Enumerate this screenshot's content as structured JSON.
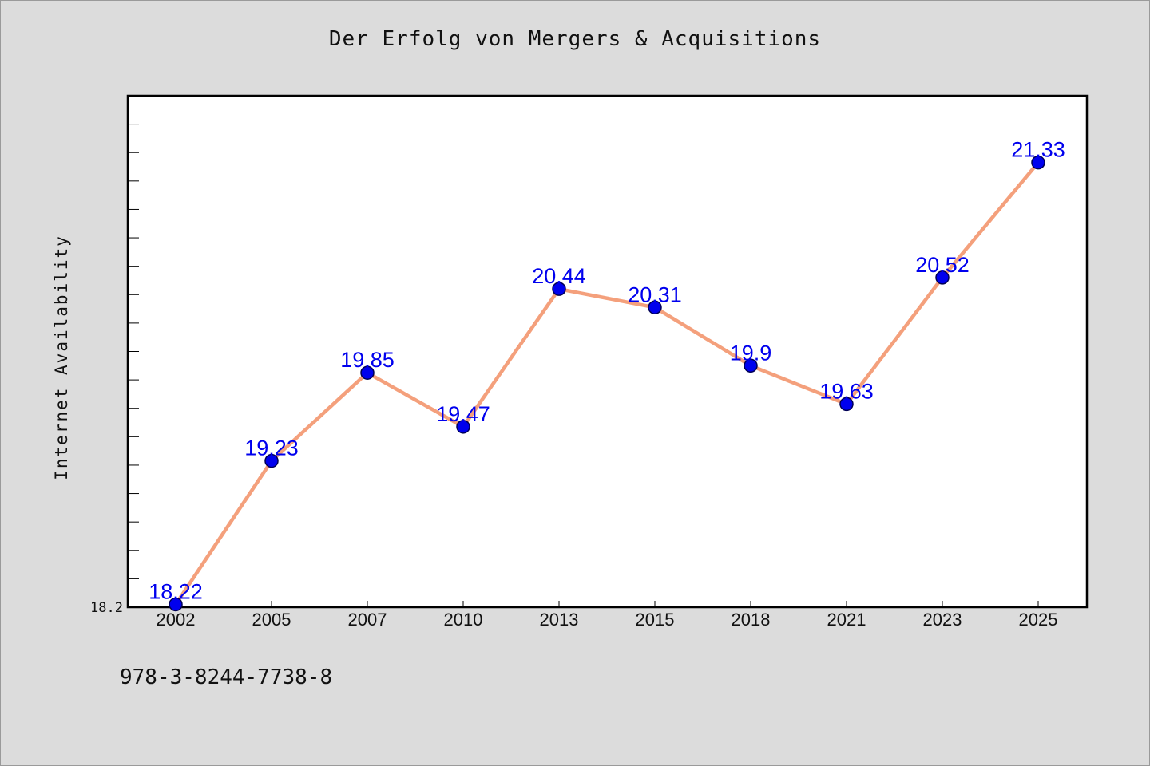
{
  "chart_data": {
    "type": "line",
    "title": "Der Erfolg von Mergers & Acquisitions",
    "ylabel": "Internet Availability",
    "xlabel": "",
    "categories": [
      "2002",
      "2005",
      "2007",
      "2010",
      "2013",
      "2015",
      "2018",
      "2021",
      "2023",
      "2025"
    ],
    "series": [
      {
        "values": [
          18.22,
          19.23,
          19.85,
          19.47,
          20.44,
          20.31,
          19.9,
          19.63,
          20.52,
          21.33
        ],
        "labels": [
          "18.22",
          "19.23",
          "19.85",
          "19.47",
          "20.44",
          "20.31",
          "19.9",
          "19.63",
          "20.52",
          "21.33"
        ]
      }
    ],
    "y_tick_labels": [
      "18.2"
    ],
    "ylim": [
      18.2,
      21.8
    ],
    "grid": false,
    "legend": "none",
    "colors": {
      "line": "#f4a07c",
      "marker": "#0000ee",
      "marker_edge": "#000055",
      "data_label": "#0000ee",
      "plot_background": "#ffffff",
      "page_background": "#dcdcdc"
    }
  },
  "footnote": "978-3-8244-7738-8"
}
